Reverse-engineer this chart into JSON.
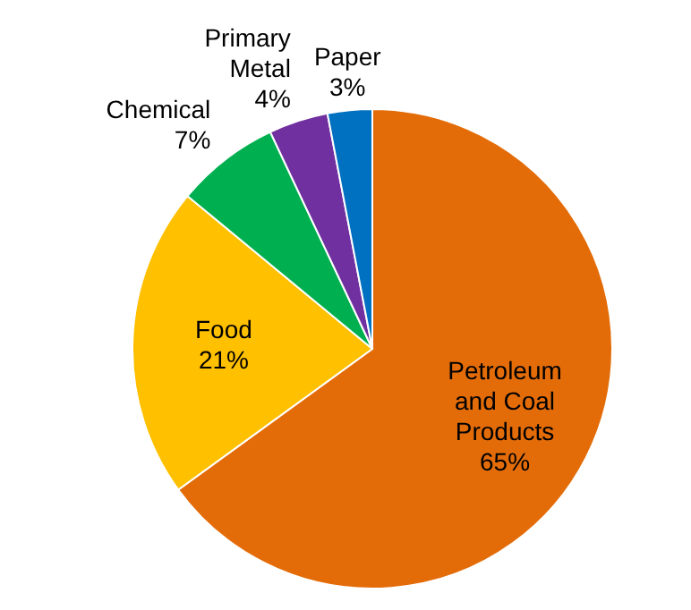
{
  "chart_data": {
    "type": "pie",
    "categories": [
      "Petroleum and Coal Products",
      "Food",
      "Chemical",
      "Primary Metal",
      "Paper"
    ],
    "values": [
      65,
      21,
      7,
      4,
      3
    ],
    "colors": [
      "#e36c09",
      "#ffc000",
      "#00b050",
      "#7030a0",
      "#0070c0"
    ],
    "value_labels": [
      "65%",
      "21%",
      "7%",
      "4%",
      "3%"
    ]
  }
}
